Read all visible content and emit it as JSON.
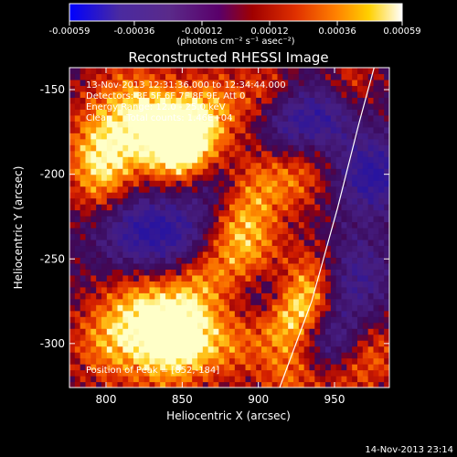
{
  "chart_data": {
    "type": "heatmap",
    "title": "Reconstructed RHESSI Image",
    "xlabel": "Heliocentric X (arcsec)",
    "ylabel": "Heliocentric Y (arcsec)",
    "xlim": [
      776,
      986
    ],
    "ylim": [
      -326,
      -137
    ],
    "x_ticks": [
      800,
      850,
      900,
      950
    ],
    "y_ticks": [
      -150,
      -200,
      -250,
      -300
    ],
    "colorbar": {
      "ticks": [
        "-0.00059",
        "-0.00036",
        "-0.00012",
        "0.00012",
        "0.00036",
        "0.00059"
      ],
      "unit_label": "(photons cm⁻² s⁻¹ asec⁻²)",
      "range": [
        -0.00059,
        0.00059
      ]
    },
    "annotations": [
      "13-Nov-2013 12:31:36.000 to 12:34:44.000",
      "Detectors: 3F 5F 6F 7F 8F 9F, Att 0",
      "Energy Range: 12.0 - 25.0 keV",
      "Clean     Total counts: 1.46E+04"
    ],
    "peak_label": "Position of Peak = [852,-184]",
    "peak": [
      852,
      -184
    ],
    "limb_curve": [
      [
        914,
        -326
      ],
      [
        935,
        -275
      ],
      [
        952,
        -220
      ],
      [
        966,
        -170
      ],
      [
        976,
        -137
      ]
    ],
    "intensity_blobs": [
      {
        "x": 852,
        "y": -184,
        "v": 1.0,
        "s": 16
      },
      {
        "x": 838,
        "y": -175,
        "v": 0.8,
        "s": 16
      },
      {
        "x": 815,
        "y": -160,
        "v": 0.7,
        "s": 20
      },
      {
        "x": 800,
        "y": -205,
        "v": 0.6,
        "s": 16
      },
      {
        "x": 795,
        "y": -185,
        "v": 0.6,
        "s": 16
      },
      {
        "x": 870,
        "y": -160,
        "v": 0.6,
        "s": 16
      },
      {
        "x": 825,
        "y": -280,
        "v": 0.8,
        "s": 18
      },
      {
        "x": 850,
        "y": -293,
        "v": 0.85,
        "s": 14
      },
      {
        "x": 860,
        "y": -260,
        "v": 0.7,
        "s": 16
      },
      {
        "x": 800,
        "y": -300,
        "v": 0.6,
        "s": 18
      },
      {
        "x": 840,
        "y": -310,
        "v": 0.6,
        "s": 18
      },
      {
        "x": 885,
        "y": -225,
        "v": 0.6,
        "s": 16
      },
      {
        "x": 895,
        "y": -250,
        "v": 0.6,
        "s": 16
      },
      {
        "x": 930,
        "y": -275,
        "v": 0.8,
        "s": 14
      },
      {
        "x": 915,
        "y": -290,
        "v": 0.6,
        "s": 14
      },
      {
        "x": 940,
        "y": -255,
        "v": 0.5,
        "s": 14
      },
      {
        "x": 905,
        "y": -205,
        "v": 0.5,
        "s": 16
      },
      {
        "x": 930,
        "y": -200,
        "v": 0.4,
        "s": 14
      },
      {
        "x": 975,
        "y": -305,
        "v": 0.5,
        "s": 14
      },
      {
        "x": 920,
        "y": -320,
        "v": 0.5,
        "s": 14
      },
      {
        "x": 955,
        "y": -320,
        "v": 0.4,
        "s": 14
      },
      {
        "x": 960,
        "y": -145,
        "v": 0.4,
        "s": 12
      },
      {
        "x": 905,
        "y": -150,
        "v": 0.4,
        "s": 14
      },
      {
        "x": 880,
        "y": -300,
        "v": 0.55,
        "s": 16
      }
    ],
    "cool_blobs": [
      {
        "x": 820,
        "y": -232,
        "v": -0.8,
        "s": 18
      },
      {
        "x": 850,
        "y": -240,
        "v": -0.7,
        "s": 16
      },
      {
        "x": 975,
        "y": -200,
        "v": -0.9,
        "s": 16
      },
      {
        "x": 960,
        "y": -260,
        "v": -0.7,
        "s": 18
      },
      {
        "x": 945,
        "y": -165,
        "v": -0.6,
        "s": 14
      },
      {
        "x": 920,
        "y": -170,
        "v": -0.6,
        "s": 14
      },
      {
        "x": 870,
        "y": -210,
        "v": -0.5,
        "s": 14
      },
      {
        "x": 905,
        "y": -270,
        "v": -0.5,
        "s": 14
      },
      {
        "x": 950,
        "y": -300,
        "v": -0.6,
        "s": 14
      }
    ]
  },
  "footer": {
    "timestamp": "14-Nov-2013 23:14"
  }
}
